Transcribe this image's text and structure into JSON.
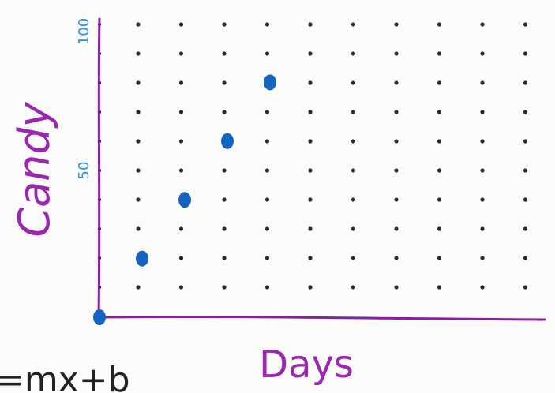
{
  "chart_data": {
    "type": "scatter",
    "title": "",
    "xlabel": "Days",
    "ylabel": "Candy",
    "ylim": [
      0,
      100
    ],
    "y_tick_labels": [
      {
        "value": 50,
        "label": "50"
      },
      {
        "value": 100,
        "label": "100"
      }
    ],
    "grid": "dot-grid",
    "series": [
      {
        "points": [
          {
            "x": 0,
            "y": 0
          },
          {
            "x": 1,
            "y": 20
          },
          {
            "x": 2,
            "y": 40
          },
          {
            "x": 3,
            "y": 60
          },
          {
            "x": 4,
            "y": 80
          }
        ]
      }
    ]
  },
  "equation_text": "=mx+b",
  "colors": {
    "axis": "#8a1fa0",
    "label": "#9b27b0",
    "point": "#1565c0",
    "tick_label": "#2f8fd8",
    "grid_dot": "#2a2a2a"
  }
}
